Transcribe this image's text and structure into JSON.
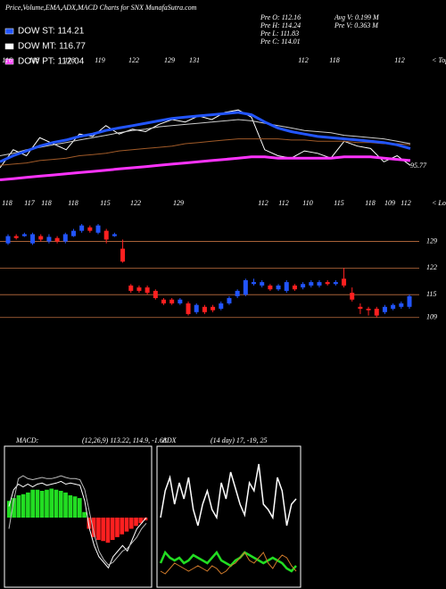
{
  "header": {
    "title": "Price,Volume,EMA,ADX,MACD Charts for SNX  MunafaSutra.com",
    "legend": [
      {
        "name": "DOW ST: 114.21",
        "color": "#2255ff"
      },
      {
        "name": "DOW MT: 116.77",
        "color": "#ffffff"
      },
      {
        "name": "DOW PT: 112.04",
        "color": "#ff33ff"
      }
    ],
    "info": [
      "Pre  O: 112.16",
      "Pre  H: 114.24",
      "Pre  L: 111.83",
      "Pre  C: 114.01"
    ],
    "info2": [
      "Avg  V: 0.199 M",
      "Pre  V: 0.363 M"
    ]
  },
  "chart_data": [
    {
      "type": "ema",
      "tops": [
        116,
        118,
        118,
        119,
        122,
        129,
        131,
        112,
        118,
        112
      ],
      "tops_label": "< Tops",
      "lows": [
        118,
        117,
        118,
        118,
        115,
        122,
        129,
        112,
        112,
        110,
        115,
        118,
        109,
        112
      ],
      "lows_label": "< Lows",
      "annotation": "95.77",
      "ylim": [
        0,
        100
      ],
      "series": [
        {
          "color": "#ffffff",
          "width": 1,
          "values": [
            20,
            35,
            30,
            45,
            40,
            35,
            48,
            46,
            55,
            48,
            52,
            50,
            56,
            60,
            58,
            63,
            60,
            66,
            68,
            62,
            35,
            30,
            28,
            34,
            32,
            28,
            42,
            38,
            36,
            25,
            30,
            22
          ]
        },
        {
          "color": "#a05a28",
          "width": 1,
          "values": [
            22,
            23,
            24,
            26,
            27,
            28,
            30,
            31,
            32,
            34,
            35,
            36,
            37,
            38,
            40,
            41,
            42,
            43,
            44,
            44,
            44,
            44,
            43,
            43,
            42,
            42,
            42,
            41,
            41,
            40,
            40,
            39
          ]
        },
        {
          "color": "#cccccc",
          "width": 1,
          "values": [
            30,
            32,
            35,
            37,
            39,
            41,
            43,
            45,
            47,
            49,
            51,
            52,
            54,
            55,
            56,
            57,
            58,
            59,
            60,
            59,
            57,
            55,
            53,
            51,
            50,
            49,
            47,
            46,
            45,
            44,
            42,
            40
          ]
        },
        {
          "color": "#2255ff",
          "width": 3,
          "values": [
            25,
            30,
            34,
            38,
            41,
            43,
            46,
            48,
            51,
            53,
            55,
            57,
            59,
            61,
            62,
            63,
            64,
            65,
            66,
            64,
            58,
            53,
            50,
            48,
            46,
            45,
            44,
            43,
            42,
            41,
            39,
            36
          ]
        },
        {
          "color": "#ff33ff",
          "width": 3,
          "values": [
            10,
            11,
            12,
            13,
            14,
            15,
            16,
            17,
            18,
            19,
            20,
            21,
            22,
            23,
            24,
            25,
            26,
            27,
            28,
            29,
            29,
            28,
            28,
            28,
            28,
            28,
            29,
            29,
            29,
            28,
            27,
            26
          ]
        }
      ]
    },
    {
      "type": "candlestick",
      "up_color": "#2255ff",
      "down_color": "#ff2020",
      "ylim": [
        108,
        135
      ],
      "yticks": [
        129,
        122,
        115,
        109
      ],
      "grid": true,
      "open": [
        128.5,
        130.4,
        130.4,
        128.5,
        130.4,
        129,
        129.9,
        129,
        130.4,
        131.8,
        132.7,
        131.3,
        131.8,
        130.4,
        127.1,
        117.4,
        116.9,
        116.9,
        116,
        113.7,
        113.7,
        112.7,
        112.7,
        110.4,
        111.8,
        111.8,
        111.3,
        112.7,
        114.6,
        115,
        117.8,
        117.4,
        117.4,
        116.4,
        116,
        117.4,
        116.9,
        117.4,
        117.4,
        118.3,
        117.8,
        119.2,
        115.5,
        111.8,
        111.3,
        111.3,
        110.4,
        111.3,
        111.8,
        111.8
      ],
      "high": [
        130.9,
        130.9,
        131.3,
        131.3,
        130.9,
        130.9,
        130.4,
        131.3,
        132.3,
        133.6,
        133.2,
        133.6,
        132.3,
        131.3,
        129.5,
        117.8,
        117.4,
        117.4,
        116.4,
        114.1,
        114.1,
        114.1,
        113.2,
        112.7,
        112.3,
        112.3,
        113.2,
        114.6,
        116.4,
        119.2,
        119.2,
        118.8,
        117.8,
        117.8,
        118.8,
        117.8,
        118.3,
        118.8,
        118.8,
        118.8,
        118.8,
        122,
        116.9,
        112.7,
        111.8,
        111.8,
        112.3,
        112.7,
        113.2,
        115
      ],
      "low": [
        128.1,
        129.5,
        130.2,
        128.1,
        129,
        128.5,
        128.5,
        128.5,
        130.2,
        131.3,
        131.3,
        130.9,
        128.5,
        130.2,
        123.4,
        115.5,
        115.5,
        115,
        113.7,
        112.3,
        112.3,
        112.3,
        109.5,
        109.9,
        109.9,
        110.4,
        110.9,
        112.3,
        114.1,
        114.6,
        117.4,
        116.9,
        116,
        116,
        115.5,
        116,
        116.4,
        116.9,
        116.9,
        117.4,
        117.4,
        116.9,
        113.2,
        109.9,
        109.5,
        109,
        109.9,
        110.9,
        111.3,
        111.3
      ],
      "close": [
        130.4,
        129.9,
        130.9,
        130.9,
        129.5,
        130.2,
        129,
        130.9,
        131.8,
        133.2,
        131.8,
        133.2,
        129.5,
        130.9,
        123.7,
        116,
        116,
        115.5,
        114.1,
        112.7,
        112.7,
        113.7,
        109.9,
        112.3,
        110.4,
        110.9,
        112.7,
        114.1,
        116,
        118.8,
        118.3,
        118.3,
        116.4,
        117.4,
        118.3,
        116.4,
        117.8,
        118.3,
        118.3,
        117.8,
        118.3,
        117.4,
        113.7,
        111.3,
        110.9,
        109.5,
        111.8,
        112.3,
        112.7,
        114.6
      ]
    },
    {
      "type": "macd",
      "label": "MACD:",
      "params": "(12,26,9) 113.22, 114.9, -1.68",
      "ylim": [
        -1.2,
        1.2
      ],
      "pos_color": "#22dd22",
      "neg_color": "#ff2020",
      "histogram": [
        0.3,
        0.35,
        0.4,
        0.42,
        0.45,
        0.5,
        0.5,
        0.48,
        0.5,
        0.52,
        0.5,
        0.48,
        0.45,
        0.4,
        0.38,
        0.35,
        0.1,
        -0.2,
        -0.35,
        -0.4,
        -0.42,
        -0.45,
        -0.4,
        -0.35,
        -0.3,
        -0.25,
        -0.2,
        -0.15,
        -0.1,
        -0.05
      ],
      "series": [
        {
          "color": "#ffffff",
          "values": [
            0.2,
            0.5,
            0.6,
            0.55,
            0.6,
            0.55,
            0.6,
            0.62,
            0.58,
            0.6,
            0.62,
            0.65,
            0.6,
            0.62,
            0.6,
            0.58,
            0.3,
            -0.2,
            -0.5,
            -0.7,
            -0.8,
            -0.9,
            -0.7,
            -0.6,
            -0.5,
            -0.6,
            -0.4,
            -0.2,
            -0.1,
            0
          ]
        },
        {
          "color": "#bbbbbb",
          "values": [
            -0.2,
            0.3,
            0.7,
            0.75,
            0.7,
            0.68,
            0.7,
            0.72,
            0.7,
            0.7,
            0.72,
            0.75,
            0.72,
            0.7,
            0.7,
            0.68,
            0.5,
            0.1,
            -0.3,
            -0.6,
            -0.75,
            -0.85,
            -0.8,
            -0.7,
            -0.6,
            -0.55,
            -0.45,
            -0.35,
            -0.2,
            -0.1
          ]
        }
      ]
    },
    {
      "type": "adx",
      "label": "ADX",
      "params": "(14 day) 17, -19, 25",
      "ylim": [
        0,
        50
      ],
      "series": [
        {
          "color": "#ffffff",
          "width": 1.5,
          "values": [
            25,
            35,
            40,
            30,
            38,
            32,
            40,
            28,
            22,
            30,
            35,
            28,
            25,
            38,
            32,
            42,
            36,
            30,
            26,
            38,
            35,
            45,
            30,
            28,
            25,
            40,
            35,
            22,
            30,
            32
          ]
        },
        {
          "color": "#22dd22",
          "width": 2.5,
          "values": [
            8,
            12,
            10,
            9,
            10,
            8,
            9,
            11,
            10,
            9,
            8,
            10,
            12,
            9,
            8,
            7,
            9,
            10,
            12,
            11,
            10,
            9,
            8,
            9,
            10,
            9,
            8,
            6,
            5,
            7
          ]
        },
        {
          "color": "#d07a2a",
          "width": 1,
          "values": [
            5,
            4,
            6,
            8,
            7,
            6,
            5,
            6,
            7,
            6,
            5,
            7,
            6,
            4,
            5,
            7,
            8,
            10,
            12,
            9,
            8,
            10,
            12,
            8,
            6,
            9,
            11,
            10,
            7,
            5
          ]
        }
      ]
    }
  ]
}
